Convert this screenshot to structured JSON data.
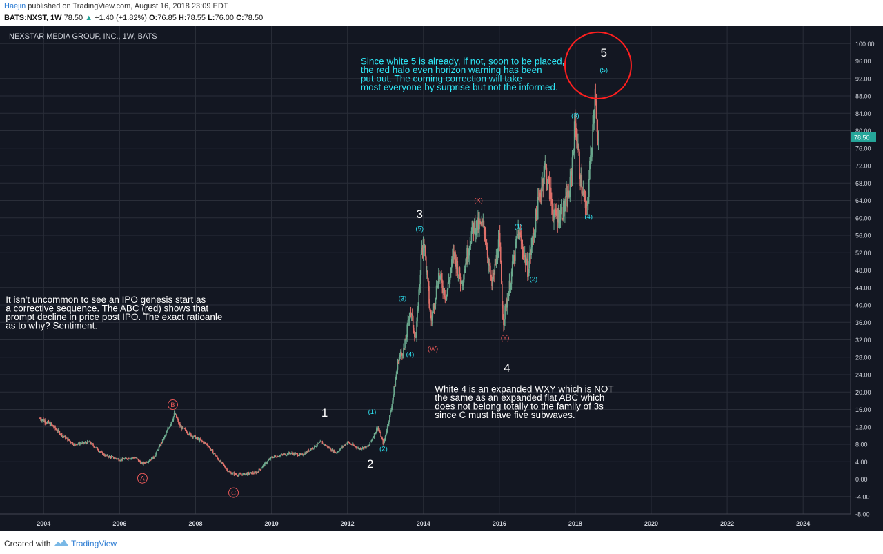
{
  "header": {
    "author": "Haejin",
    "published": " published on TradingView.com, August 16, 2018 23:09 EDT",
    "symbol": "BATS:NXST, 1W",
    "last": "78.50",
    "change": "+1.40 (+1.82%)",
    "open_label": "O:",
    "open": "76.85",
    "high_label": "H:",
    "high": "78.55",
    "low_label": "L:",
    "low": "76.00",
    "close_label": "C:",
    "close": "78.50"
  },
  "footer": {
    "created": "Created with",
    "brand": "TradingView"
  },
  "colors": {
    "background": "#131722",
    "grid": "#2a2e39",
    "up": "#6aa98e",
    "down": "#e0706a",
    "cyan": "#2ee6f5",
    "red_label": "#e85858",
    "halo": "#ff1f1f",
    "price_tag": "#26a69a"
  },
  "chart_data": {
    "type": "candlestick",
    "title": "NEXSTAR MEDIA GROUP, INC., 1W, BATS",
    "ylim": [
      -8,
      104
    ],
    "xlim": [
      2002.85,
      2025.25
    ],
    "y_ticks": [
      "100.00",
      "96.00",
      "92.00",
      "88.00",
      "84.00",
      "80.00",
      "76.00",
      "72.00",
      "68.00",
      "64.00",
      "60.00",
      "56.00",
      "52.00",
      "48.00",
      "44.00",
      "40.00",
      "36.00",
      "32.00",
      "28.00",
      "24.00",
      "20.00",
      "16.00",
      "12.00",
      "8.00",
      "4.00",
      "0.00",
      "-4.00",
      "-8.00"
    ],
    "x_ticks": [
      "2004",
      "2006",
      "2008",
      "2010",
      "2012",
      "2014",
      "2016",
      "2018",
      "2020",
      "2022",
      "2024"
    ],
    "last_price": "78.50",
    "price_path": [
      [
        2003.9,
        14.0
      ],
      [
        2004.2,
        12.5
      ],
      [
        2004.5,
        10.0
      ],
      [
        2004.8,
        8.0
      ],
      [
        2005.2,
        8.5
      ],
      [
        2005.6,
        5.5
      ],
      [
        2006.0,
        4.5
      ],
      [
        2006.4,
        5.0
      ],
      [
        2006.6,
        3.5
      ],
      [
        2006.9,
        5.0
      ],
      [
        2007.2,
        10.0
      ],
      [
        2007.45,
        15.0
      ],
      [
        2007.6,
        12.0
      ],
      [
        2007.9,
        10.0
      ],
      [
        2008.3,
        8.0
      ],
      [
        2008.6,
        4.5
      ],
      [
        2008.9,
        1.5
      ],
      [
        2009.1,
        1.0
      ],
      [
        2009.6,
        1.5
      ],
      [
        2010.0,
        5.0
      ],
      [
        2010.5,
        6.0
      ],
      [
        2010.8,
        5.5
      ],
      [
        2011.3,
        8.5
      ],
      [
        2011.7,
        6.0
      ],
      [
        2012.0,
        8.5
      ],
      [
        2012.3,
        7.0
      ],
      [
        2012.55,
        7.5
      ],
      [
        2012.8,
        12.0
      ],
      [
        2012.95,
        8.0
      ],
      [
        2013.15,
        16.0
      ],
      [
        2013.35,
        28.0
      ],
      [
        2013.5,
        30.0
      ],
      [
        2013.65,
        39.0
      ],
      [
        2013.8,
        32.0
      ],
      [
        2013.95,
        52.0
      ],
      [
        2014.0,
        56.0
      ],
      [
        2014.2,
        36.0
      ],
      [
        2014.4,
        47.0
      ],
      [
        2014.6,
        42.0
      ],
      [
        2014.8,
        52.0
      ],
      [
        2015.0,
        45.0
      ],
      [
        2015.3,
        58.0
      ],
      [
        2015.6,
        58.0
      ],
      [
        2015.8,
        44.0
      ],
      [
        2016.0,
        55.0
      ],
      [
        2016.1,
        36.0
      ],
      [
        2016.3,
        46.0
      ],
      [
        2016.5,
        57.0
      ],
      [
        2016.75,
        48.0
      ],
      [
        2017.0,
        62.0
      ],
      [
        2017.2,
        72.0
      ],
      [
        2017.45,
        60.0
      ],
      [
        2017.7,
        62.0
      ],
      [
        2017.85,
        66.0
      ],
      [
        2018.0,
        82.0
      ],
      [
        2018.15,
        68.0
      ],
      [
        2018.3,
        61.0
      ],
      [
        2018.45,
        80.0
      ],
      [
        2018.52,
        90.0
      ],
      [
        2018.58,
        76.0
      ],
      [
        2018.62,
        78.5
      ]
    ],
    "wave_labels": [
      {
        "text": "1",
        "x": 2011.4,
        "y": 14.3,
        "style": "white"
      },
      {
        "text": "2",
        "x": 2012.6,
        "y": 2.6,
        "style": "white"
      },
      {
        "text": "3",
        "x": 2013.9,
        "y": 60.0,
        "style": "white"
      },
      {
        "text": "4",
        "x": 2016.2,
        "y": 24.6,
        "style": "white"
      },
      {
        "text": "5",
        "x": 2018.75,
        "y": 97.0,
        "style": "white"
      },
      {
        "text": "(1)",
        "x": 2012.65,
        "y": 15.0,
        "style": "cyan"
      },
      {
        "text": "(2)",
        "x": 2012.95,
        "y": 6.5,
        "style": "cyan"
      },
      {
        "text": "(3)",
        "x": 2013.45,
        "y": 41.0,
        "style": "cyan"
      },
      {
        "text": "(4)",
        "x": 2013.65,
        "y": 28.2,
        "style": "cyan"
      },
      {
        "text": "(5)",
        "x": 2013.9,
        "y": 57.0,
        "style": "cyan"
      },
      {
        "text": "(1)",
        "x": 2016.5,
        "y": 57.5,
        "style": "cyan"
      },
      {
        "text": "(2)",
        "x": 2016.9,
        "y": 45.5,
        "style": "cyan"
      },
      {
        "text": "(3)",
        "x": 2018.0,
        "y": 83.0,
        "style": "cyan"
      },
      {
        "text": "(4)",
        "x": 2018.35,
        "y": 59.8,
        "style": "cyan"
      },
      {
        "text": "(5)",
        "x": 2018.75,
        "y": 93.5,
        "style": "cyan"
      },
      {
        "text": "(W)",
        "x": 2014.25,
        "y": 29.5,
        "style": "red"
      },
      {
        "text": "(X)",
        "x": 2015.45,
        "y": 63.5,
        "style": "red"
      },
      {
        "text": "(Y)",
        "x": 2016.15,
        "y": 32.0,
        "style": "red"
      }
    ],
    "circle_labels": [
      {
        "text": "A",
        "x": 2006.6,
        "y": 0.2
      },
      {
        "text": "B",
        "x": 2007.4,
        "y": 17.1
      },
      {
        "text": "C",
        "x": 2009.0,
        "y": -3.1
      }
    ],
    "halo": {
      "x": 2018.6,
      "y": 95.0
    },
    "annotations": [
      {
        "id": "top",
        "color": "cyan",
        "x": 2012.35,
        "y": 95.2,
        "lines": [
          "Since white 5 is already, if not, soon to be placed,",
          "the red halo even horizon warning has been",
          "put out. The coming correction will take",
          "most everyone by surprise but not the informed."
        ]
      },
      {
        "id": "left",
        "color": "white",
        "x": 2003.0,
        "y": 40.5,
        "lines": [
          "It isn't uncommon to see an IPO genesis start as",
          "a corrective sequence. The ABC (red) shows that",
          "prompt decline in price post IPO. The exact ratioanle",
          "as to why? Sentiment."
        ]
      },
      {
        "id": "bottom",
        "color": "white",
        "x": 2014.3,
        "y": 20.0,
        "lines": [
          "White 4 is an expanded WXY which is NOT",
          "the same as an expanded flat ABC which",
          "does not belong totally to the family of 3s",
          "since C must have five subwaves."
        ]
      }
    ]
  }
}
